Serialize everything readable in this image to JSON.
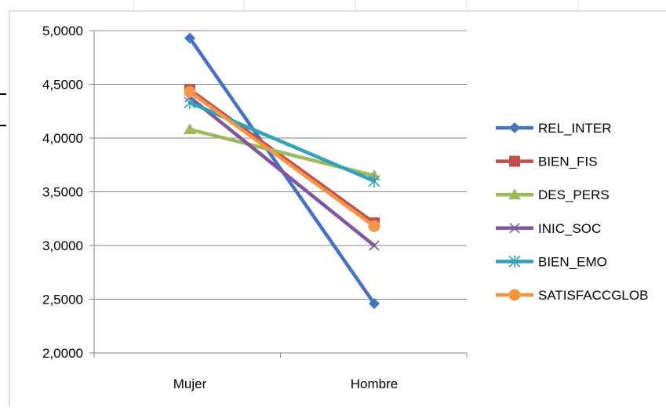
{
  "chart_data": {
    "type": "line",
    "categories": [
      "Mujer",
      "Hombre"
    ],
    "ylim": [
      2.0,
      5.0
    ],
    "yticks": [
      2.0,
      2.5,
      3.0,
      3.5,
      4.0,
      4.5,
      5.0
    ],
    "ytick_labels": [
      "2,0000",
      "2,5000",
      "3,0000",
      "3,5000",
      "4,0000",
      "4,5000",
      "5,0000"
    ],
    "grid": true,
    "legend_position": "right",
    "series": [
      {
        "name": "REL_INTER",
        "values": [
          4.93,
          2.46
        ],
        "color": "#4472C4",
        "marker": "diamond"
      },
      {
        "name": "BIEN_FIS",
        "values": [
          4.45,
          3.21
        ],
        "color": "#C0504D",
        "marker": "square"
      },
      {
        "name": "DES_PERS",
        "values": [
          4.08,
          3.65
        ],
        "color": "#9BBB59",
        "marker": "triangle"
      },
      {
        "name": "INIC_SOC",
        "values": [
          4.38,
          3.0
        ],
        "color": "#7E57A0",
        "marker": "x"
      },
      {
        "name": "BIEN_EMO",
        "values": [
          4.33,
          3.6
        ],
        "color": "#31A3B9",
        "marker": "star"
      },
      {
        "name": "SATISFACCGLOB",
        "values": [
          4.43,
          3.18
        ],
        "color": "#F79646",
        "marker": "circle"
      }
    ]
  }
}
